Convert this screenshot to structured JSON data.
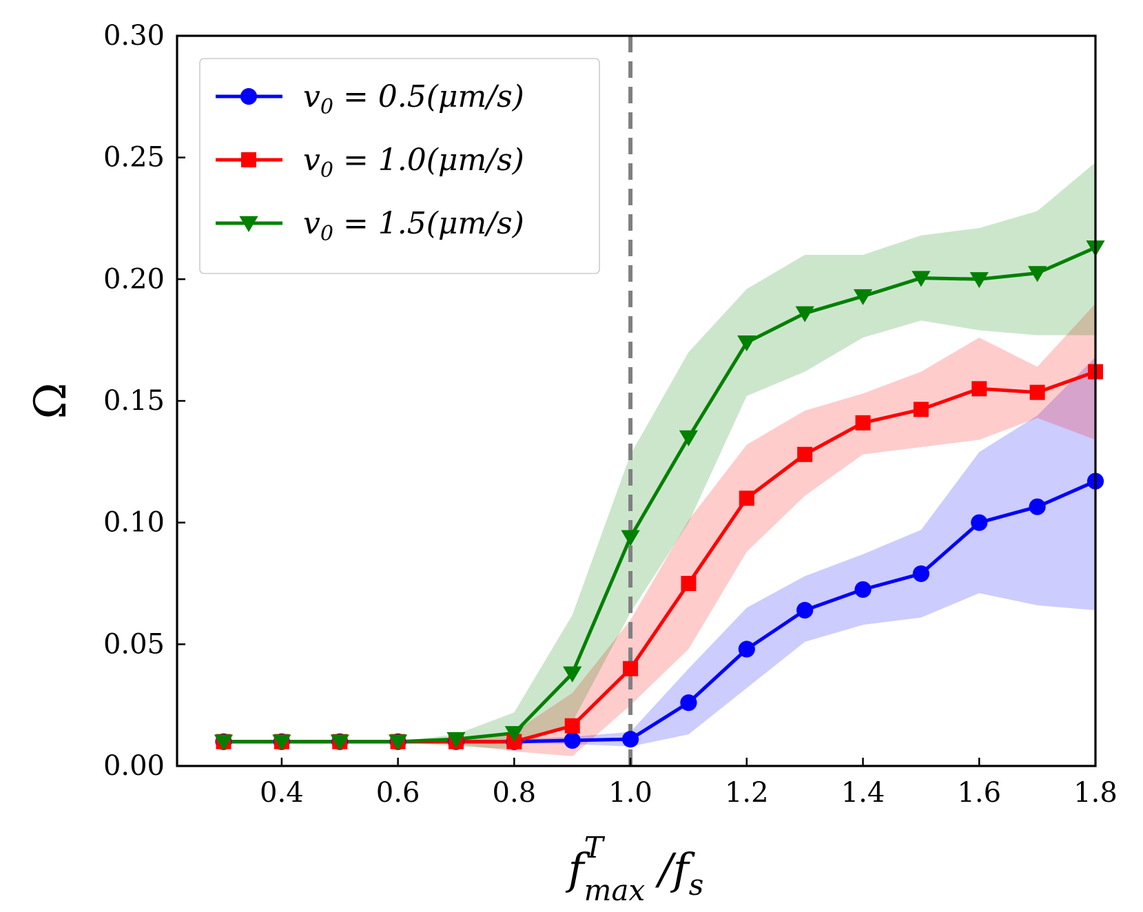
{
  "chart_data": {
    "type": "line",
    "title": "",
    "xlabel": "f_max^T /f_s",
    "xlabel_parts": {
      "base": "f",
      "sup": "T",
      "sub": "max",
      "rest": " /f",
      "rest_sub": "s"
    },
    "ylabel": "Ω",
    "xlim": [
      0.22,
      1.8
    ],
    "ylim": [
      0.0,
      0.3
    ],
    "xticks": [
      0.4,
      0.6,
      0.8,
      1.0,
      1.2,
      1.4,
      1.6,
      1.8
    ],
    "xtick_labels": [
      "0.4",
      "0.6",
      "0.8",
      "1.0",
      "1.2",
      "1.4",
      "1.6",
      "1.8"
    ],
    "yticks": [
      0.0,
      0.05,
      0.1,
      0.15,
      0.2,
      0.25,
      0.3
    ],
    "ytick_labels": [
      "0.00",
      "0.05",
      "0.10",
      "0.15",
      "0.20",
      "0.25",
      "0.30"
    ],
    "grid": false,
    "legend_position": "top-left",
    "vline": {
      "x": 1.0,
      "color": "#808080",
      "style": "dashed"
    },
    "x": [
      0.3,
      0.4,
      0.5,
      0.6,
      0.7,
      0.8,
      0.9,
      1.0,
      1.1,
      1.2,
      1.3,
      1.4,
      1.5,
      1.6,
      1.7,
      1.8
    ],
    "series": [
      {
        "name": "v_0 = 0.5(μm/s)",
        "legend_parts": {
          "v": "v",
          "sub": "0",
          "rest": " = 0.5(μm/s)"
        },
        "color": "#0000ff",
        "marker": "circle",
        "values": [
          0.01,
          0.01,
          0.01,
          0.01,
          0.01,
          0.01,
          0.0105,
          0.011,
          0.026,
          0.048,
          0.064,
          0.0725,
          0.079,
          0.1,
          0.1065,
          0.117
        ],
        "lower": [
          0.01,
          0.01,
          0.01,
          0.01,
          0.01,
          0.0095,
          0.009,
          0.008,
          0.013,
          0.032,
          0.051,
          0.058,
          0.061,
          0.071,
          0.066,
          0.064
        ],
        "upper": [
          0.01,
          0.01,
          0.01,
          0.01,
          0.01,
          0.011,
          0.012,
          0.014,
          0.04,
          0.065,
          0.078,
          0.087,
          0.097,
          0.129,
          0.144,
          0.168
        ]
      },
      {
        "name": "v_0 = 1.0(μm/s)",
        "legend_parts": {
          "v": "v",
          "sub": "0",
          "rest": " = 1.0(μm/s)"
        },
        "color": "#ff0000",
        "marker": "square",
        "values": [
          0.01,
          0.01,
          0.01,
          0.01,
          0.01,
          0.01,
          0.0165,
          0.04,
          0.075,
          0.11,
          0.128,
          0.141,
          0.1465,
          0.155,
          0.1535,
          0.162
        ],
        "lower": [
          0.01,
          0.01,
          0.01,
          0.01,
          0.009,
          0.006,
          0.004,
          0.025,
          0.048,
          0.088,
          0.111,
          0.128,
          0.131,
          0.134,
          0.143,
          0.134
        ],
        "upper": [
          0.01,
          0.01,
          0.01,
          0.01,
          0.011,
          0.014,
          0.03,
          0.06,
          0.101,
          0.132,
          0.146,
          0.153,
          0.162,
          0.176,
          0.164,
          0.19
        ]
      },
      {
        "name": "v_0 = 1.5(μm/s)",
        "legend_parts": {
          "v": "v",
          "sub": "0",
          "rest": " = 1.5(μm/s)"
        },
        "color": "#008000",
        "marker": "triangle-down",
        "values": [
          0.01,
          0.01,
          0.01,
          0.01,
          0.011,
          0.0135,
          0.038,
          0.094,
          0.135,
          0.174,
          0.186,
          0.193,
          0.2005,
          0.2,
          0.2025,
          0.213
        ],
        "lower": [
          0.01,
          0.01,
          0.01,
          0.01,
          0.008,
          0.007,
          0.018,
          0.063,
          0.1,
          0.152,
          0.162,
          0.176,
          0.183,
          0.179,
          0.177,
          0.177
        ],
        "upper": [
          0.01,
          0.01,
          0.01,
          0.01,
          0.013,
          0.022,
          0.062,
          0.128,
          0.17,
          0.196,
          0.21,
          0.21,
          0.218,
          0.221,
          0.228,
          0.248
        ]
      }
    ]
  }
}
